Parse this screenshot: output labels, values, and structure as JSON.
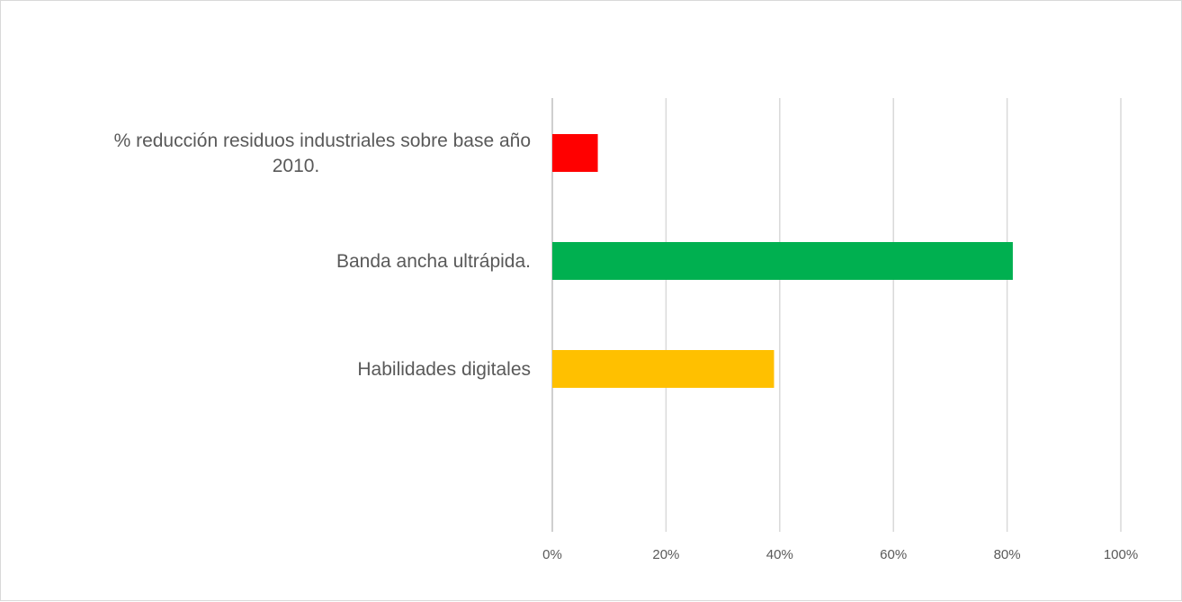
{
  "chart_data": {
    "type": "bar",
    "orientation": "horizontal",
    "title": "",
    "xlabel": "",
    "ylabel": "",
    "xlim": [
      0,
      1
    ],
    "grid": true,
    "legend": "none",
    "ticks": [
      "0%",
      "20%",
      "40%",
      "60%",
      "80%",
      "100%"
    ],
    "tick_values": [
      0,
      0.2,
      0.4,
      0.6,
      0.8,
      1.0
    ],
    "categories": [
      {
        "label_lines": [
          "% reducción residuos industriales sobre base año",
          "2010."
        ],
        "value": 0.08,
        "color": "#ff0000"
      },
      {
        "label_lines": [
          "Banda ancha ultrápida."
        ],
        "value": 0.81,
        "color": "#00b050"
      },
      {
        "label_lines": [
          "Habilidades digitales"
        ],
        "value": 0.39,
        "color": "#ffc000"
      }
    ]
  }
}
